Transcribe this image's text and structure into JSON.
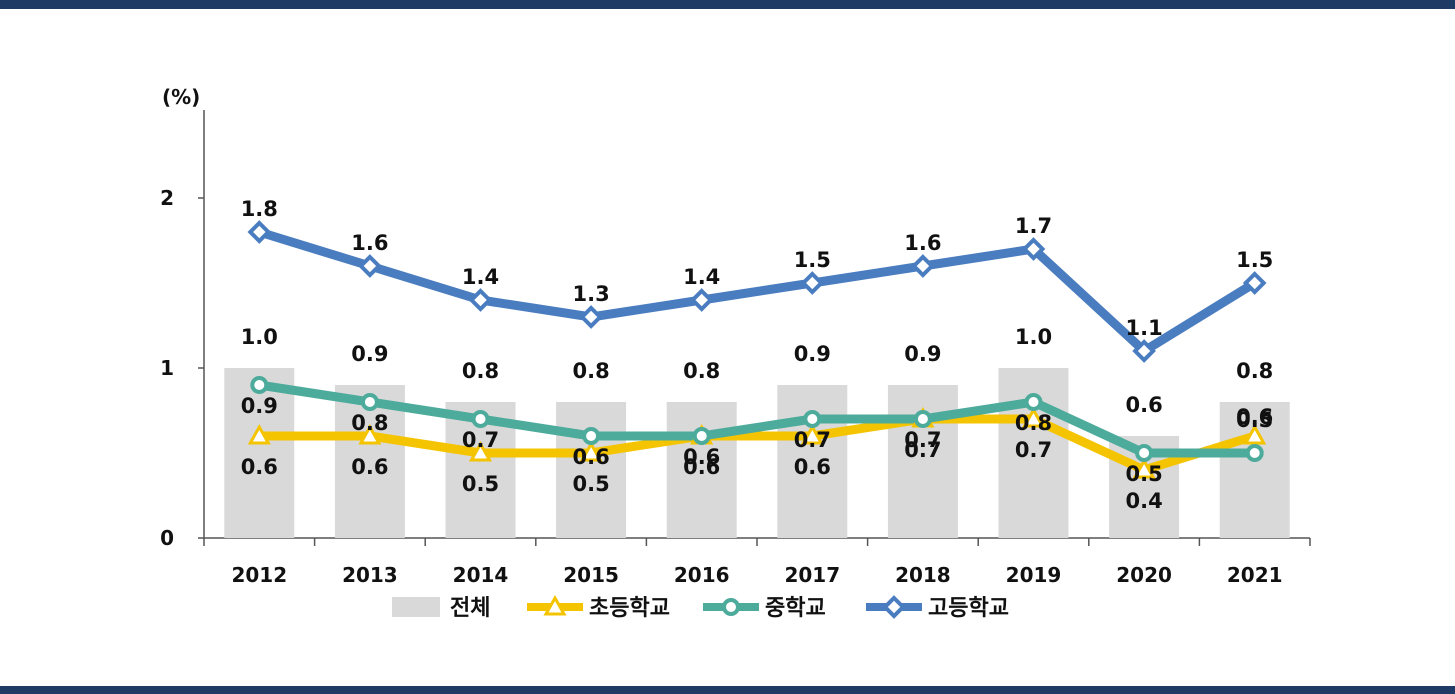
{
  "chart_data": {
    "type": "bar",
    "unit_label": "(%)",
    "categories": [
      "2012",
      "2013",
      "2014",
      "2015",
      "2016",
      "2017",
      "2018",
      "2019",
      "2020",
      "2021"
    ],
    "ylim": [
      0,
      2.4
    ],
    "yticks": [
      "0",
      "1",
      "2"
    ],
    "series": [
      {
        "name": "전체",
        "kind": "bar",
        "color": "#d9d9d9",
        "values": [
          1.0,
          0.9,
          0.8,
          0.8,
          0.8,
          0.9,
          0.9,
          1.0,
          0.6,
          0.8
        ],
        "labels": [
          "1.0",
          "0.9",
          "0.8",
          "0.8",
          "0.8",
          "0.9",
          "0.9",
          "1.0",
          "0.6",
          "0.8"
        ]
      },
      {
        "name": "초등학교",
        "kind": "line",
        "marker": "triangle",
        "color": "#f5c400",
        "values": [
          0.6,
          0.6,
          0.5,
          0.5,
          0.6,
          0.6,
          0.7,
          0.7,
          0.4,
          0.6
        ],
        "labels": [
          "0.6",
          "0.6",
          "0.5",
          "0.5",
          "0.6",
          "0.6",
          "0.7",
          "0.7",
          "0.4",
          "0.6"
        ]
      },
      {
        "name": "중학교",
        "kind": "line",
        "marker": "circle",
        "color": "#4dab9c",
        "values": [
          0.9,
          0.8,
          0.7,
          0.6,
          0.6,
          0.7,
          0.7,
          0.8,
          0.5,
          0.5
        ],
        "labels": [
          "0.9",
          "0.8",
          "0.7",
          "0.6",
          "0.6",
          "0.7",
          "0.7",
          "0.8",
          "0.5",
          "0.5"
        ]
      },
      {
        "name": "고등학교",
        "kind": "line",
        "marker": "diamond",
        "color": "#4a7dc0",
        "values": [
          1.8,
          1.6,
          1.4,
          1.3,
          1.4,
          1.5,
          1.6,
          1.7,
          1.1,
          1.5
        ],
        "labels": [
          "1.8",
          "1.6",
          "1.4",
          "1.3",
          "1.4",
          "1.5",
          "1.6",
          "1.7",
          "1.1",
          "1.5"
        ]
      }
    ],
    "legend_position": "bottom",
    "grid": false
  }
}
